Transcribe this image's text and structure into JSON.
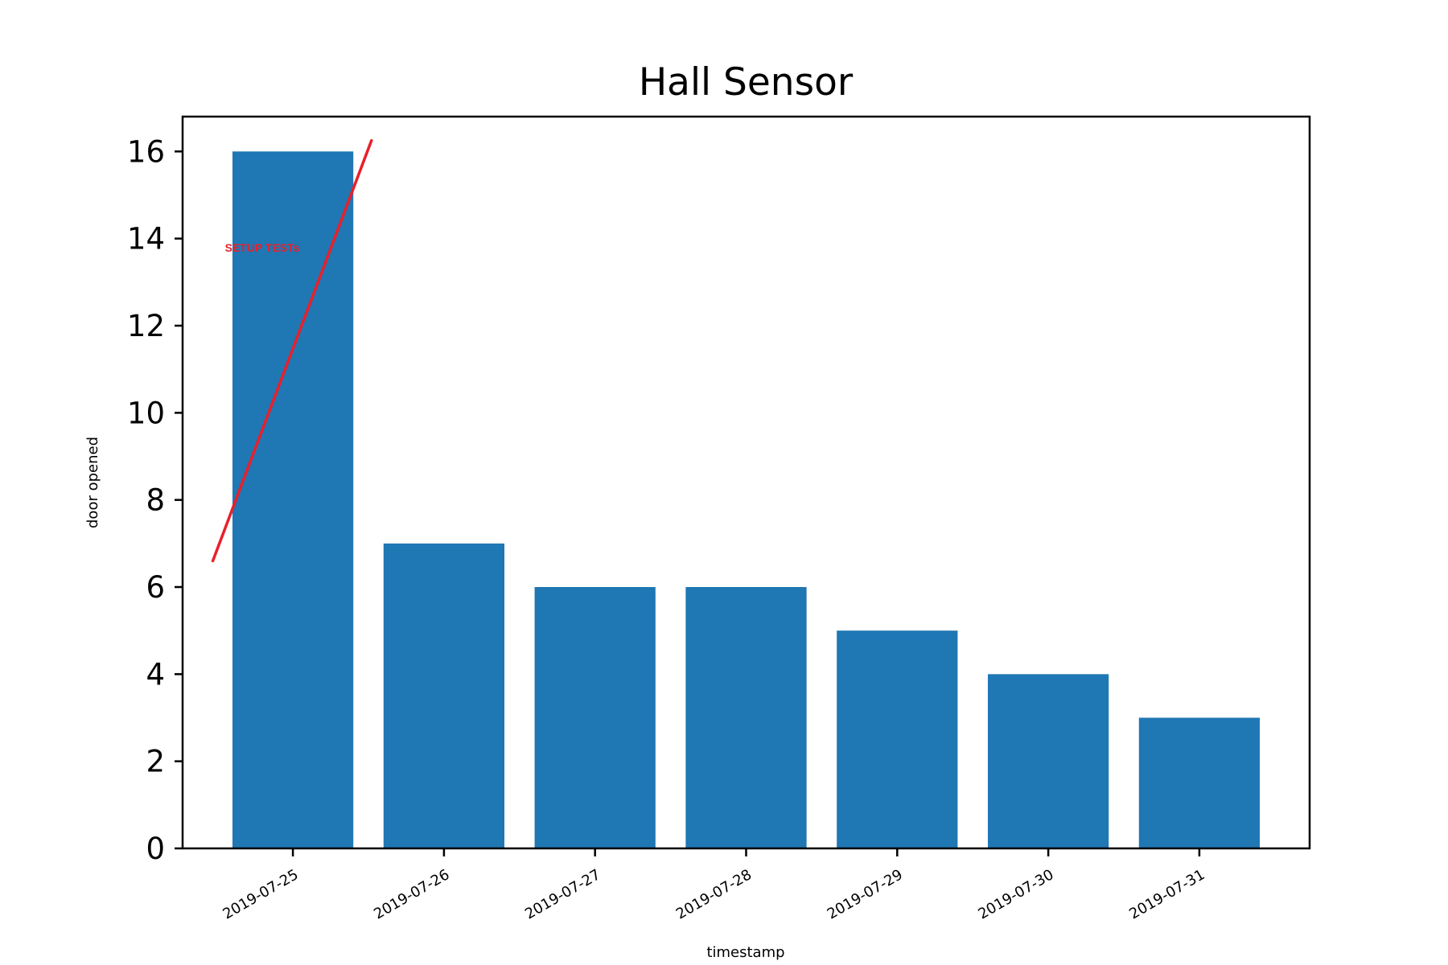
{
  "chart_data": {
    "type": "bar",
    "title": "Hall Sensor",
    "xlabel": "timestamp",
    "ylabel": "door opened",
    "categories": [
      "2019-07-25",
      "2019-07-26",
      "2019-07-27",
      "2019-07-28",
      "2019-07-29",
      "2019-07-30",
      "2019-07-31"
    ],
    "values": [
      16,
      7,
      6,
      6,
      5,
      4,
      3
    ],
    "ylim": [
      0,
      16.8
    ],
    "yticks": [
      0,
      2,
      4,
      6,
      8,
      10,
      12,
      14,
      16
    ],
    "grid": false,
    "legend": "none",
    "bar_color": "#1f77b4",
    "annotation": {
      "text": "SETUP TESTs",
      "color": "#e8202a",
      "line_from": {
        "category_index": -0.53,
        "value": 6.6
      },
      "line_to": {
        "category_index": 0.52,
        "value": 16.25
      },
      "text_anchor": {
        "category_index": -0.45,
        "value": 13.7
      }
    }
  }
}
